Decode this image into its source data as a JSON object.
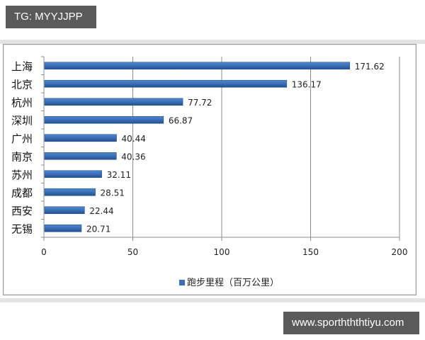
{
  "header": {
    "tag": "TG: MYYJJPP"
  },
  "footer": {
    "tag": "www.sporthththtiyu.com"
  },
  "colors": {
    "bar": "#3a6fb7",
    "bar_dark": "#2a5591",
    "tag_bg": "#5a5a5a",
    "grid": "#8c8c8c"
  },
  "chart_data": {
    "type": "bar",
    "orientation": "horizontal",
    "title": "",
    "categories": [
      "上海",
      "北京",
      "杭州",
      "深圳",
      "广州",
      "南京",
      "苏州",
      "成都",
      "西安",
      "无锡"
    ],
    "series": [
      {
        "name": "跑步里程（百万公里）",
        "values": [
          171.62,
          136.17,
          77.72,
          66.87,
          40.44,
          40.36,
          32.11,
          28.51,
          22.44,
          20.71
        ]
      }
    ],
    "data_labels": [
      "171.62",
      "136.17",
      "77.72",
      "66.87",
      "40.44",
      "40.36",
      "32.11",
      "28.51",
      "22.44",
      "20.71"
    ],
    "xlabel": "",
    "ylabel": "",
    "xlim": [
      0,
      200
    ],
    "xticks": [
      "0",
      "50",
      "100",
      "150",
      "200"
    ],
    "grid": "vertical major gridlines",
    "legend_position": "bottom",
    "legend": [
      "跑步里程（百万公里）"
    ]
  }
}
